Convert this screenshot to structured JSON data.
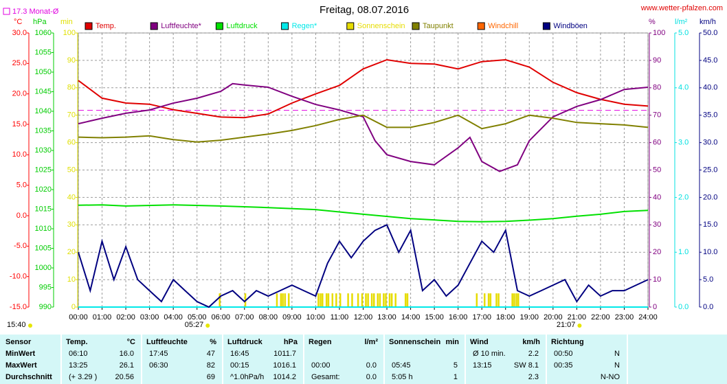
{
  "header": {
    "site": "www.wetter-pfalzen.com",
    "time": "15:40"
  },
  "chart_data": {
    "type": "line",
    "title": "Freitag, 08.07.2016",
    "month_avg": {
      "value": 17.3,
      "label": "17.3 Monat-Ø",
      "color": "#e000e0"
    },
    "xlim": [
      0,
      24
    ],
    "xticks": [
      {
        "value": 0,
        "label": "00:00"
      },
      {
        "value": 1,
        "label": "01:00"
      },
      {
        "value": 2,
        "label": "02:00"
      },
      {
        "value": 3,
        "label": "03:00"
      },
      {
        "value": 4,
        "label": "04:00"
      },
      {
        "value": 5,
        "label": "05:00"
      },
      {
        "value": 6,
        "label": "06:00"
      },
      {
        "value": 7,
        "label": "07:00"
      },
      {
        "value": 8,
        "label": "08:00"
      },
      {
        "value": 9,
        "label": "09:00"
      },
      {
        "value": 10,
        "label": "10:00"
      },
      {
        "value": 11,
        "label": "11:00"
      },
      {
        "value": 12,
        "label": "12:00"
      },
      {
        "value": 13,
        "label": "13:00"
      },
      {
        "value": 14,
        "label": "14:00"
      },
      {
        "value": 15,
        "label": "15:00"
      },
      {
        "value": 16,
        "label": "16:00"
      },
      {
        "value": 17,
        "label": "17:00"
      },
      {
        "value": 18,
        "label": "18:00"
      },
      {
        "value": 19,
        "label": "19:00"
      },
      {
        "value": 20,
        "label": "20:00"
      },
      {
        "value": 21,
        "label": "21:00"
      },
      {
        "value": 22,
        "label": "22:00"
      },
      {
        "value": 23,
        "label": "23:00"
      },
      {
        "value": 24,
        "label": "24:00"
      }
    ],
    "grid": true,
    "ylabel": "°C",
    "ylim": [
      -15,
      30
    ],
    "yticks": [
      {
        "value": -15,
        "label": "-15.0"
      },
      {
        "value": -10,
        "label": "-10.0"
      },
      {
        "value": -5,
        "label": "-5.0"
      },
      {
        "value": 0,
        "label": "0.0"
      },
      {
        "value": 5,
        "label": "5.0"
      },
      {
        "value": 10,
        "label": "10.0"
      },
      {
        "value": 15,
        "label": "15.0"
      },
      {
        "value": 20,
        "label": "20.0"
      },
      {
        "value": 25,
        "label": "25.0"
      },
      {
        "value": 30,
        "label": "30.0"
      }
    ],
    "y2label": "hPa",
    "y2lim": [
      990,
      1060
    ],
    "y2ticks": [
      990,
      995,
      1000,
      1005,
      1010,
      1015,
      1020,
      1025,
      1030,
      1035,
      1040,
      1045,
      1050,
      1055,
      1060
    ],
    "y3label": "min",
    "y3lim": [
      0,
      100
    ],
    "y3ticks": [
      0,
      10,
      20,
      30,
      40,
      50,
      60,
      70,
      80,
      90,
      100
    ],
    "y4label": "%",
    "y4lim": [
      0,
      100
    ],
    "y4ticks": [
      0,
      10,
      20,
      30,
      40,
      50,
      60,
      70,
      80,
      90,
      100
    ],
    "y5label": "l/m²",
    "y5lim": [
      0,
      5
    ],
    "y5ticks": [
      {
        "value": 0,
        "label": "0.0"
      },
      {
        "value": 1,
        "label": "1.0"
      },
      {
        "value": 2,
        "label": "2.0"
      },
      {
        "value": 3,
        "label": "3.0"
      },
      {
        "value": 4,
        "label": "4.0"
      },
      {
        "value": 5,
        "label": "5.0"
      }
    ],
    "y6label": "km/h",
    "y6lim": [
      0,
      50
    ],
    "y6ticks": [
      {
        "value": 0,
        "label": "0.0"
      },
      {
        "value": 5,
        "label": "5.0"
      },
      {
        "value": 10,
        "label": "10.0"
      },
      {
        "value": 15,
        "label": "15.0"
      },
      {
        "value": 20,
        "label": "20.0"
      },
      {
        "value": 25,
        "label": "25.0"
      },
      {
        "value": 30,
        "label": "30.0"
      },
      {
        "value": 35,
        "label": "35.0"
      },
      {
        "value": 40,
        "label": "40.0"
      },
      {
        "value": 45,
        "label": "45.0"
      },
      {
        "value": 50,
        "label": "50.0"
      }
    ],
    "axis_colors": {
      "y": "#ff0000",
      "y2": "#00cc00",
      "y3": "#e0e000",
      "y4": "#800080",
      "y5": "#00e0e0",
      "y6": "#000080"
    },
    "series": [
      {
        "name": "Temp.",
        "color": "#e00000",
        "axis": "y",
        "x": [
          0,
          1,
          2,
          3,
          4,
          5,
          6,
          7,
          8,
          9,
          10,
          11,
          12,
          13,
          14,
          15,
          16,
          17,
          18,
          19,
          20,
          21,
          22,
          23,
          24
        ],
        "values": [
          22.2,
          19.3,
          18.5,
          18.3,
          17.4,
          16.8,
          16.2,
          16.1,
          16.7,
          18.5,
          20.0,
          21.4,
          24.1,
          25.6,
          25.0,
          24.9,
          24.1,
          25.3,
          25.6,
          24.4,
          21.9,
          20.2,
          19.1,
          18.3,
          18.0
        ]
      },
      {
        "name": "Luftfeuchte*",
        "color": "#800080",
        "axis": "y4",
        "x": [
          0,
          1,
          2,
          3,
          4,
          5,
          6,
          6.5,
          7,
          8,
          9,
          10,
          11,
          12,
          12.5,
          13,
          14,
          15,
          16,
          16.5,
          17,
          17.75,
          18.5,
          19,
          20,
          21,
          22,
          23,
          24
        ],
        "values": [
          66.9,
          68.9,
          70.7,
          71.9,
          74.4,
          76.2,
          78.7,
          81.5,
          81.0,
          80.2,
          76.9,
          73.9,
          71.9,
          69.4,
          60.7,
          55.6,
          53.1,
          51.9,
          58.1,
          61.9,
          53.1,
          49.5,
          51.9,
          60.7,
          69.4,
          73.2,
          75.7,
          79.4,
          80.2
        ]
      },
      {
        "name": "Luftdruck",
        "color": "#00e000",
        "axis": "y2",
        "x": [
          0,
          1,
          2,
          4,
          6,
          8,
          10,
          12,
          14,
          16,
          17,
          18,
          19,
          20,
          21,
          22,
          23,
          24
        ],
        "values": [
          1016.0,
          1016.1,
          1015.8,
          1016.1,
          1015.8,
          1015.4,
          1014.9,
          1013.7,
          1012.6,
          1011.9,
          1011.8,
          1011.9,
          1012.2,
          1012.6,
          1013.2,
          1013.7,
          1014.4,
          1014.7
        ]
      },
      {
        "name": "Regen*",
        "color": "#00e8e8",
        "axis": "y5",
        "x": [
          0,
          24
        ],
        "values": [
          0,
          0
        ]
      },
      {
        "name": "Sonnenschein",
        "color": "#e6dc00",
        "axis": "y3",
        "kind": "bar",
        "x": [
          5.92,
          7.0,
          8.33,
          8.5,
          8.58,
          8.67,
          8.83,
          10.08,
          10.17,
          10.25,
          10.42,
          10.5,
          10.67,
          10.83,
          11.0,
          11.33,
          11.5,
          11.75,
          11.92,
          12.08,
          12.17,
          12.33,
          12.42,
          12.58,
          12.67,
          12.83,
          12.92,
          13.08,
          13.17,
          13.33,
          13.75,
          13.83,
          16.75,
          17.08,
          17.25,
          17.33,
          17.58,
          17.67,
          18.25,
          18.33,
          18.42,
          18.5
        ],
        "values": [
          5,
          5,
          5,
          5,
          5,
          5,
          5,
          5,
          5,
          5,
          5,
          5,
          5,
          5,
          5,
          5,
          5,
          5,
          5,
          5,
          5,
          5,
          5,
          5,
          5,
          5,
          5,
          5,
          5,
          5,
          5,
          5,
          5,
          5,
          5,
          5,
          5,
          5,
          5,
          5,
          5,
          5
        ]
      },
      {
        "name": "Taupunkt",
        "color": "#808000",
        "axis": "y",
        "x": [
          0,
          1,
          2,
          3,
          4,
          5,
          6,
          7,
          8,
          9,
          10,
          11,
          12,
          13,
          14,
          15,
          16,
          17,
          18,
          19,
          20,
          21,
          22,
          23,
          24
        ],
        "values": [
          12.9,
          12.8,
          12.9,
          13.1,
          12.5,
          12.1,
          12.4,
          12.9,
          13.4,
          14.0,
          14.8,
          15.8,
          16.5,
          14.5,
          14.5,
          15.3,
          16.5,
          14.3,
          15.1,
          16.5,
          16.0,
          15.3,
          15.1,
          14.9,
          14.5
        ]
      },
      {
        "name": "Windchill",
        "color": "#ff6600",
        "axis": "y",
        "x": [],
        "values": []
      },
      {
        "name": "Windböen",
        "color": "#000080",
        "axis": "y6",
        "x": [
          0,
          0.5,
          1,
          1.5,
          2,
          2.5,
          3,
          3.5,
          4,
          4.5,
          5,
          5.5,
          6,
          6.5,
          7,
          7.5,
          8,
          8.5,
          9,
          9.5,
          10,
          10.5,
          11,
          11.5,
          12,
          12.5,
          13,
          13.5,
          14,
          14.5,
          15,
          15.5,
          16,
          16.5,
          17,
          17.5,
          18,
          18.5,
          19,
          19.5,
          20,
          20.5,
          21,
          21.5,
          22,
          22.5,
          23,
          23.5,
          24
        ],
        "values": [
          10,
          3,
          12,
          5,
          11,
          5,
          3,
          1,
          5,
          3,
          1,
          0,
          2,
          3,
          1,
          3,
          2,
          3,
          4,
          3,
          2,
          8,
          12,
          9,
          12,
          14,
          15,
          10,
          14,
          3,
          5,
          2,
          4,
          8,
          12,
          10,
          14,
          3,
          2,
          3,
          4,
          5,
          1,
          4,
          2,
          3,
          3,
          4,
          5
        ]
      }
    ],
    "sun_markers": [
      {
        "value": 5.45,
        "label": "05:27"
      },
      {
        "value": 21.1167,
        "label": "21:07"
      }
    ]
  },
  "table": {
    "columns": [
      {
        "name": "Sensor"
      },
      {
        "name": "Temp.",
        "unit": "°C"
      },
      {
        "name": "Luftfeuchte",
        "unit": "%"
      },
      {
        "name": "Luftdruck",
        "unit": "hPa"
      },
      {
        "name": "Regen",
        "unit": "l/m²"
      },
      {
        "name": "Sonnenschein",
        "unit": "min"
      },
      {
        "name": "Wind",
        "unit": "km/h"
      },
      {
        "name": "Richtung"
      }
    ],
    "rows": [
      {
        "label": "MinWert",
        "cells": [
          [
            "06:10",
            "16.0"
          ],
          [
            "17:45",
            "47"
          ],
          [
            "16:45",
            "1011.7"
          ],
          null,
          null,
          [
            "Ø 10 min.",
            "2.2"
          ],
          [
            "00:50",
            "N"
          ]
        ]
      },
      {
        "label": "MaxWert",
        "cells": [
          [
            "13:25",
            "26.1"
          ],
          [
            "06:30",
            "82"
          ],
          [
            "00:15",
            "1016.1"
          ],
          [
            "00:00",
            "0.0"
          ],
          [
            "05:45",
            "5"
          ],
          [
            "13:15",
            "SW 8.1"
          ],
          [
            "00:35",
            "N"
          ]
        ]
      },
      {
        "label": "Durchschnitt",
        "cells": [
          [
            "(+ 3.29 )",
            "20.56"
          ],
          [
            null,
            "69"
          ],
          [
            "^1.0hPa/h",
            "1014.2"
          ],
          [
            "Gesamt:",
            "0.0"
          ],
          [
            "5:05 h",
            "1"
          ],
          [
            null,
            "2.3"
          ],
          [
            null,
            "N-NO"
          ]
        ]
      }
    ]
  }
}
